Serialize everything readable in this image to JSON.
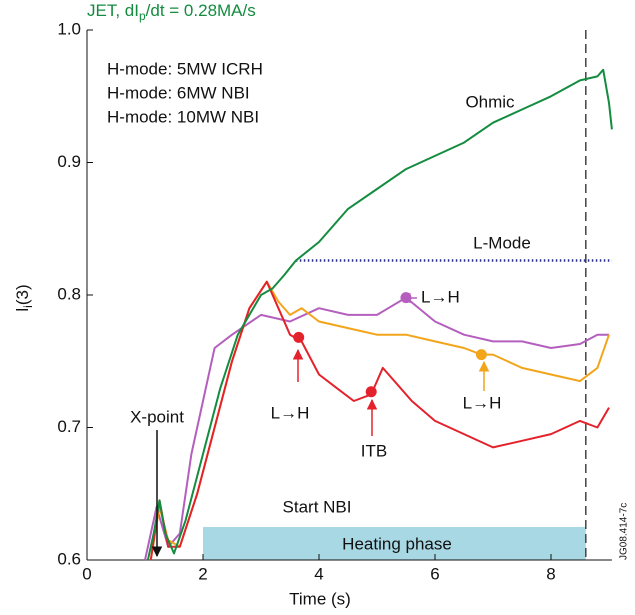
{
  "chart_data": {
    "type": "line",
    "title_parts": [
      "JET, dI",
      "p",
      "/dt = 0.28MA/s"
    ],
    "xlabel": "Time (s)",
    "ylabel_parts": [
      "l",
      "i",
      "(3)"
    ],
    "xlim": [
      0,
      9.05
    ],
    "ylim": [
      0.6,
      1.0
    ],
    "xticks": [
      0,
      2,
      4,
      6,
      8
    ],
    "yticks": [
      0.6,
      0.7,
      0.8,
      0.9,
      {
        "value": 1.0,
        "label": "1.0"
      }
    ],
    "series": [
      {
        "name": "Ohmic",
        "color": "#138c3f",
        "x": [
          1.05,
          1.15,
          1.25,
          1.35,
          1.5,
          1.7,
          2.0,
          2.3,
          2.6,
          3.0,
          3.2,
          3.4,
          3.6,
          4.0,
          4.5,
          5.0,
          5.5,
          6.0,
          6.5,
          7.0,
          7.5,
          8.0,
          8.5,
          8.8,
          8.9,
          9.0,
          9.05
        ],
        "values": [
          0.6,
          0.62,
          0.645,
          0.62,
          0.605,
          0.63,
          0.68,
          0.73,
          0.77,
          0.8,
          0.805,
          0.815,
          0.826,
          0.84,
          0.865,
          0.88,
          0.895,
          0.905,
          0.915,
          0.93,
          0.94,
          0.95,
          0.962,
          0.965,
          0.97,
          0.945,
          0.925
        ]
      },
      {
        "name": "H-mode: 5MW ICRH",
        "color": "#b45fbe",
        "x": [
          1.0,
          1.2,
          1.4,
          1.6,
          1.8,
          2.0,
          2.2,
          2.5,
          3.0,
          3.5,
          4.0,
          4.5,
          5.0,
          5.5,
          6.0,
          6.5,
          7.0,
          7.5,
          8.0,
          8.5,
          8.8,
          9.0
        ],
        "values": [
          0.6,
          0.64,
          0.61,
          0.62,
          0.68,
          0.72,
          0.76,
          0.77,
          0.785,
          0.78,
          0.79,
          0.785,
          0.785,
          0.798,
          0.78,
          0.77,
          0.765,
          0.765,
          0.76,
          0.763,
          0.77,
          0.77
        ]
      },
      {
        "name": "H-mode: 6MW NBI",
        "color": "#f2a51a",
        "x": [
          1.1,
          1.25,
          1.4,
          1.6,
          1.9,
          2.2,
          2.5,
          2.8,
          3.1,
          3.3,
          3.5,
          3.7,
          4.0,
          4.5,
          5.0,
          5.5,
          6.0,
          6.5,
          6.8,
          7.0,
          7.5,
          8.0,
          8.5,
          8.8,
          9.0
        ],
        "values": [
          0.6,
          0.64,
          0.615,
          0.61,
          0.65,
          0.7,
          0.75,
          0.79,
          0.81,
          0.795,
          0.785,
          0.79,
          0.78,
          0.775,
          0.77,
          0.77,
          0.765,
          0.76,
          0.755,
          0.755,
          0.745,
          0.74,
          0.735,
          0.745,
          0.77
        ]
      },
      {
        "name": "H-mode: 10MW NBI",
        "color": "#e4222c",
        "x": [
          1.1,
          1.25,
          1.4,
          1.6,
          1.9,
          2.2,
          2.5,
          2.8,
          3.1,
          3.3,
          3.5,
          3.7,
          4.0,
          4.3,
          4.6,
          4.9,
          5.1,
          5.3,
          5.6,
          6.0,
          6.5,
          7.0,
          7.5,
          8.0,
          8.5,
          8.8,
          9.0
        ],
        "values": [
          0.6,
          0.645,
          0.61,
          0.61,
          0.65,
          0.7,
          0.75,
          0.79,
          0.81,
          0.79,
          0.77,
          0.765,
          0.74,
          0.73,
          0.72,
          0.725,
          0.745,
          0.735,
          0.72,
          0.705,
          0.695,
          0.685,
          0.69,
          0.695,
          0.705,
          0.7,
          0.715
        ]
      }
    ],
    "markers": [
      {
        "x": 5.5,
        "y": 0.798,
        "color": "#b45fbe"
      },
      {
        "x": 6.8,
        "y": 0.755,
        "color": "#f2a51a"
      },
      {
        "x": 3.65,
        "y": 0.768,
        "color": "#e4222c"
      },
      {
        "x": 4.9,
        "y": 0.727,
        "color": "#e4222c"
      }
    ],
    "lmode": {
      "label": "L-Mode",
      "x_start": 3.6,
      "x_end": 9.05,
      "y": 0.826,
      "color": "#2b2f8f"
    },
    "end_time": 8.6,
    "heating_phase": {
      "label": "Heating phase",
      "x_start": 2.0,
      "x_end": 8.6,
      "color": "#a8d8e4"
    },
    "annotations": [
      {
        "text": "Ohmic",
        "color": "#138c3f"
      },
      {
        "text": "L→H",
        "color": "#b45fbe"
      },
      {
        "text": "L→H",
        "color": "#f2a51a"
      },
      {
        "text": "L→H",
        "color": "#e4222c"
      },
      {
        "text": "ITB",
        "color": "#e4222c"
      },
      {
        "text": "X-point",
        "color": "#111111"
      },
      {
        "text": "Start NBI",
        "color": "#2b2f8f"
      }
    ],
    "figure_id": "JG08.414-7c",
    "title_color": "#138c3f"
  }
}
